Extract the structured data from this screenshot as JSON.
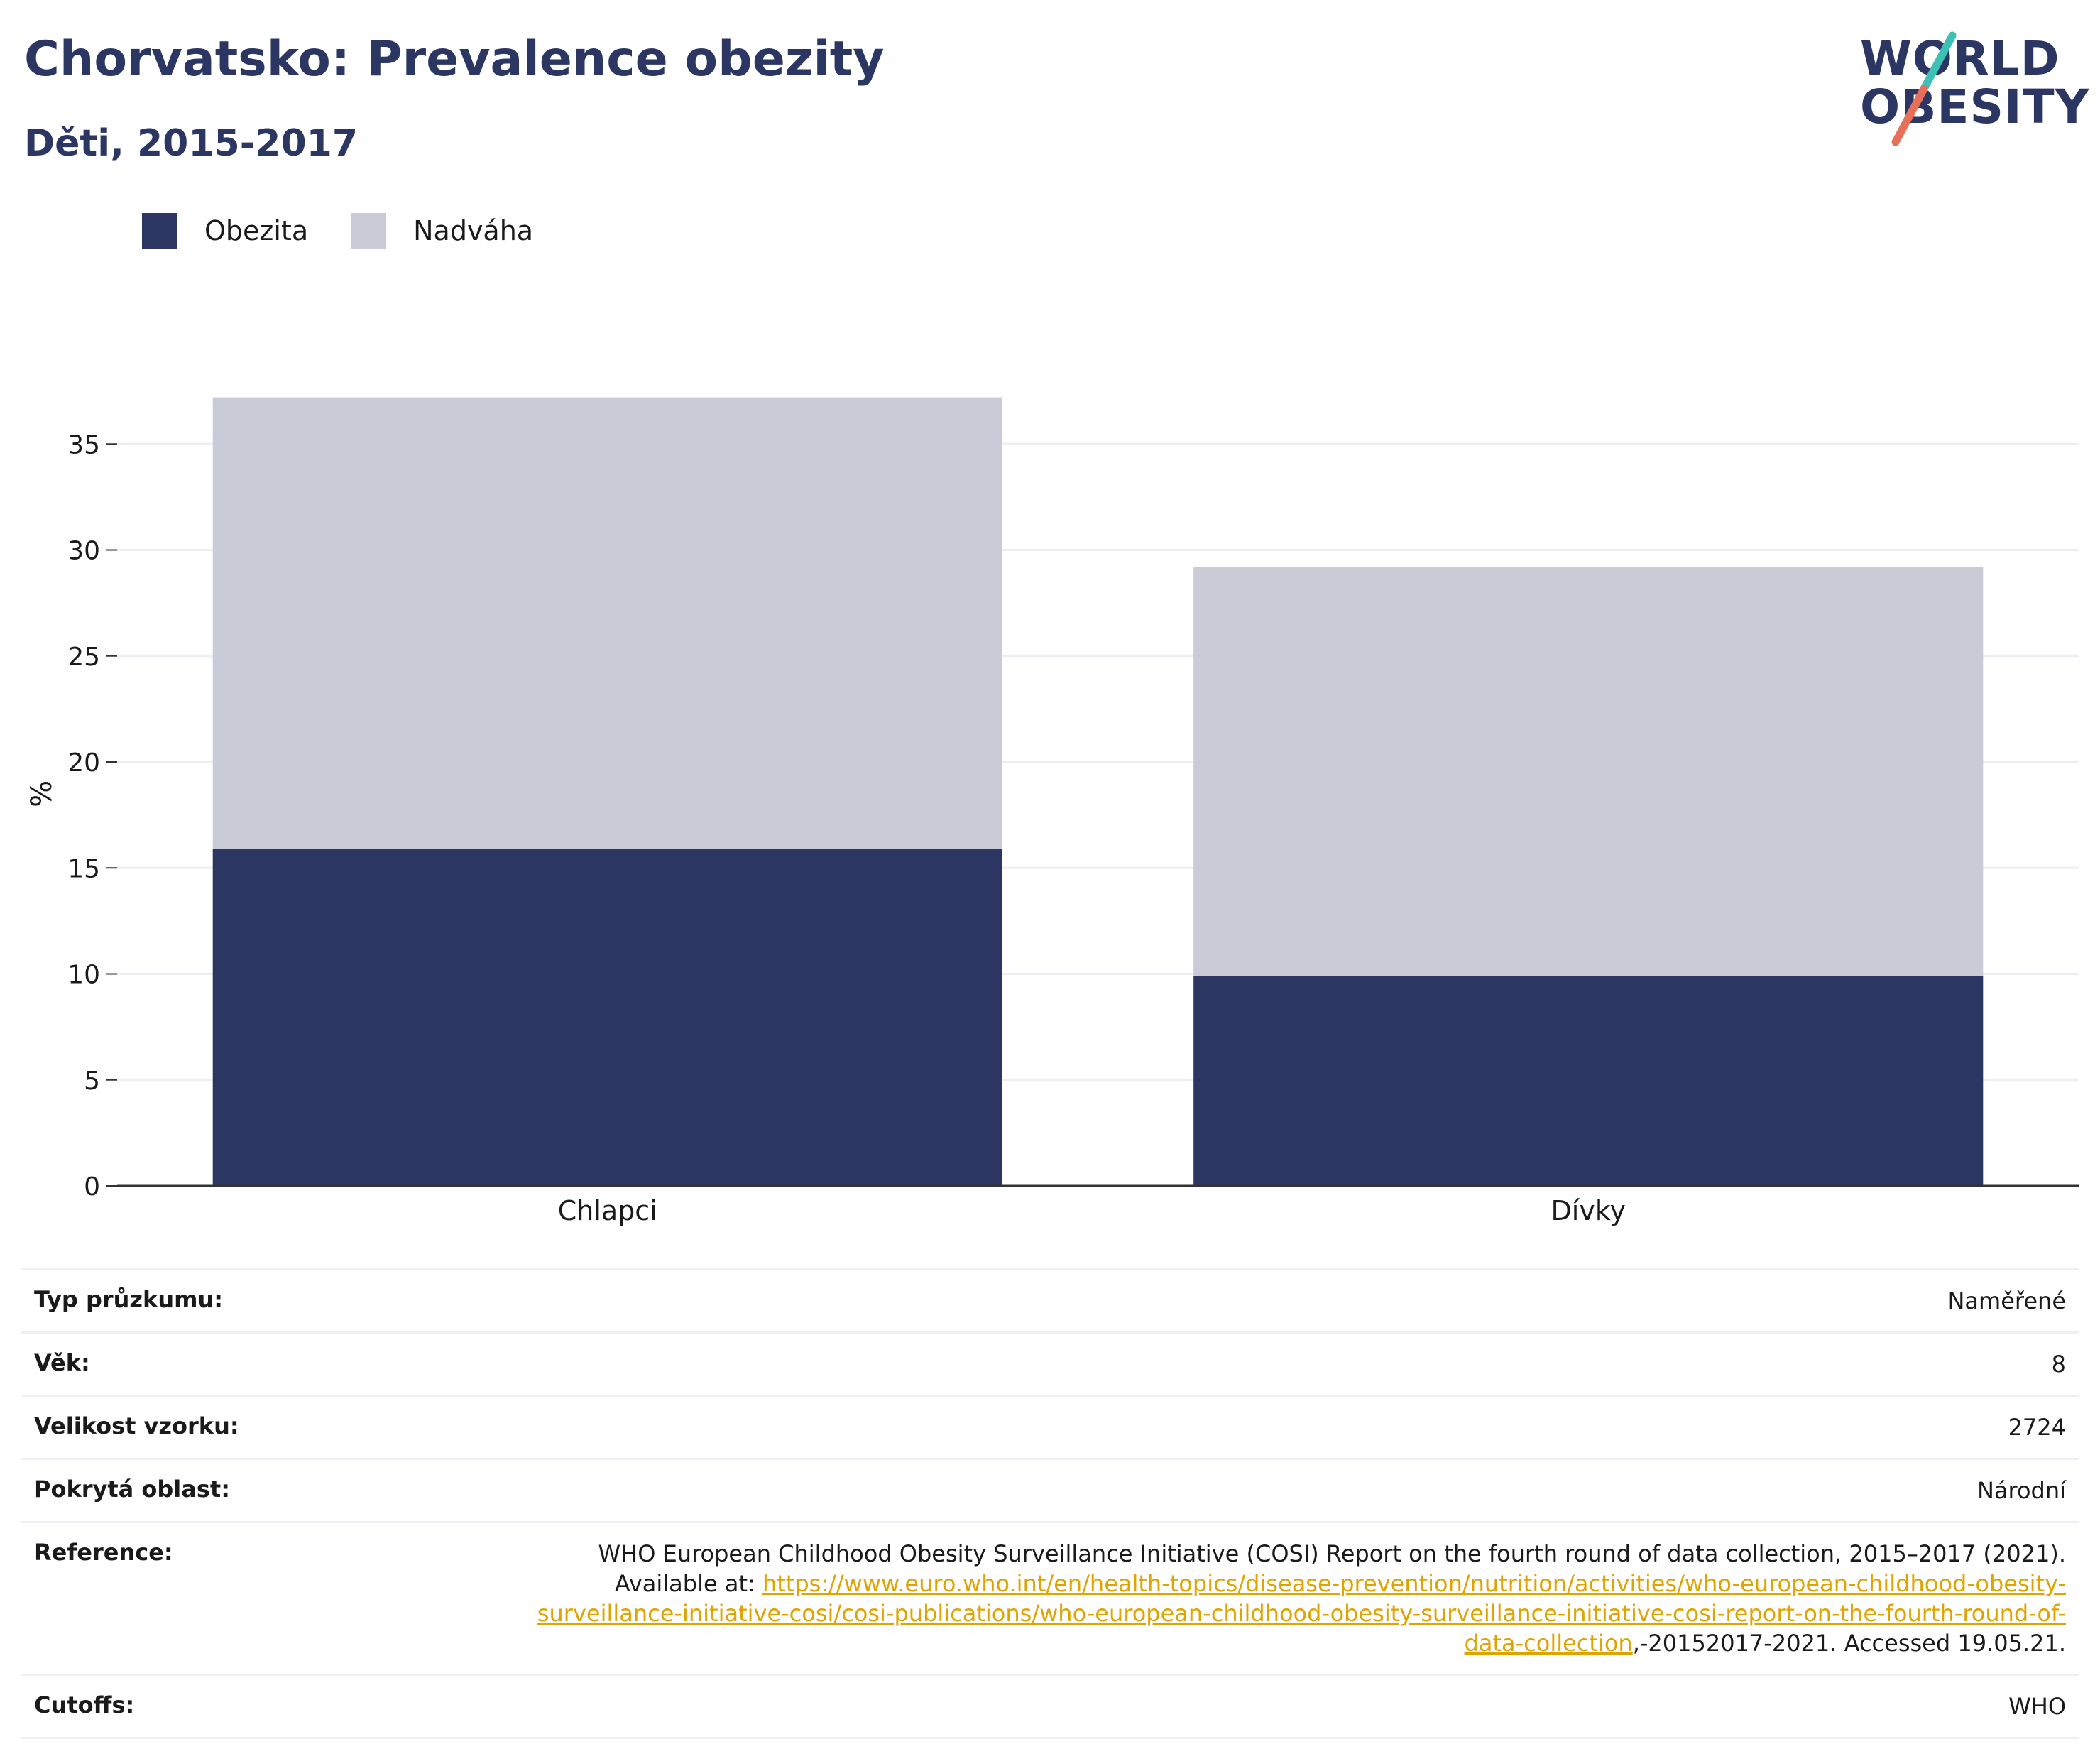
{
  "header": {
    "title": "Chorvatsko: Prevalence obezity",
    "subtitle": "Děti, 2015-2017"
  },
  "logo": {
    "line1": "WORLD",
    "line2": "OBESITY",
    "accent_colors": [
      "#3cc1b4",
      "#e8705a"
    ]
  },
  "colors": {
    "obesity": "#2b3663",
    "overweight": "#c9ccd7",
    "grid": "#eceef3",
    "axis": "#333333",
    "link": "#e0a400"
  },
  "chart_data": {
    "type": "bar",
    "stacked": true,
    "categories": [
      "Chlapci",
      "Dívky"
    ],
    "series": [
      {
        "name": "Obezita",
        "values": [
          15.9,
          9.9
        ]
      },
      {
        "name": "Nadváha",
        "values": [
          21.3,
          19.3
        ]
      }
    ],
    "ylabel": "%",
    "xlabel": "",
    "ylim": [
      0,
      37.2
    ],
    "yticks": [
      0,
      5,
      10,
      15,
      20,
      25,
      30,
      35
    ],
    "grid": true,
    "legend_position": "top-left"
  },
  "info": {
    "rows": [
      {
        "label": "Typ průzkumu:",
        "value": "Naměřené"
      },
      {
        "label": "Věk:",
        "value": "8"
      },
      {
        "label": "Velikost vzorku:",
        "value": "2724"
      },
      {
        "label": "Pokrytá oblast:",
        "value": "Národní"
      }
    ],
    "reference": {
      "label": "Reference:",
      "text_before": "WHO European Childhood Obesity Surveillance Initiative (COSI) Report on the fourth round of data collection, 2015–2017 (2021). Available at: ",
      "link": "https://www.euro.who.int/en/health-topics/disease-prevention/nutrition/activities/who-european-childhood-obesity-surveillance-initiative-cosi/cosi-publications/who-european-childhood-obesity-surveillance-initiative-cosi-report-on-the-fourth-round-of-data-collection",
      "text_after": ",-20152017-2021. Accessed 19.05.21."
    },
    "cutoffs": {
      "label": "Cutoffs:",
      "value": "WHO"
    }
  }
}
